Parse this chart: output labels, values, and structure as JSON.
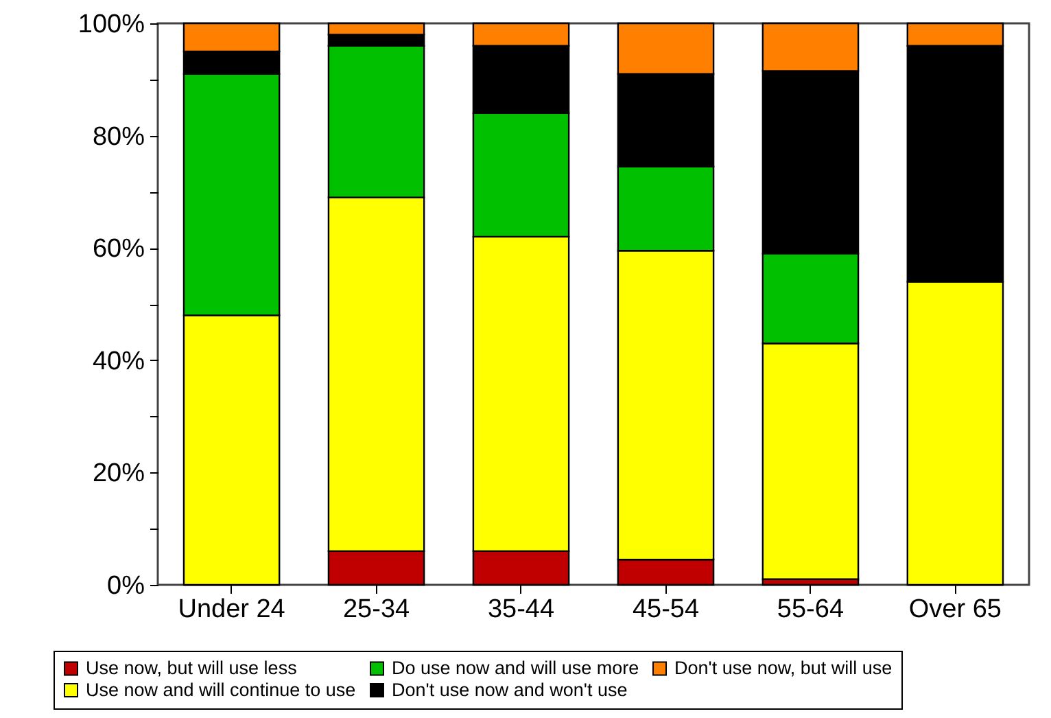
{
  "chart_data": {
    "type": "bar",
    "stacked": true,
    "categories": [
      "Under 24",
      "25-34",
      "35-44",
      "45-54",
      "55-64",
      "Over 65"
    ],
    "series": [
      {
        "name": "Use now, but will use less",
        "color": "#c00000",
        "values": [
          0,
          6,
          6,
          4.5,
          1,
          0
        ]
      },
      {
        "name": "Use now and will continue to use",
        "color": "#ffff00",
        "values": [
          48,
          63,
          56,
          55,
          42,
          54
        ]
      },
      {
        "name": "Do use now and will use more",
        "color": "#00c000",
        "values": [
          43,
          27,
          22,
          15,
          16,
          0
        ]
      },
      {
        "name": "Don't use now and won't use",
        "color": "#000000",
        "values": [
          4,
          2,
          12,
          16.5,
          32.5,
          42
        ]
      },
      {
        "name": "Don't use now, but will use",
        "color": "#ff8000",
        "values": [
          5,
          2,
          4,
          9,
          8.5,
          4
        ]
      }
    ],
    "ylim": [
      0,
      100
    ],
    "yticks": [
      {
        "value": 0,
        "label": "0%"
      },
      {
        "value": 10,
        "label": null
      },
      {
        "value": 20,
        "label": "20%"
      },
      {
        "value": 30,
        "label": null
      },
      {
        "value": 40,
        "label": "40%"
      },
      {
        "value": 50,
        "label": null
      },
      {
        "value": 60,
        "label": "60%"
      },
      {
        "value": 70,
        "label": null
      },
      {
        "value": 80,
        "label": "80%"
      },
      {
        "value": 90,
        "label": null
      },
      {
        "value": 100,
        "label": "100%"
      }
    ],
    "grid": false,
    "legend": "bottom"
  }
}
